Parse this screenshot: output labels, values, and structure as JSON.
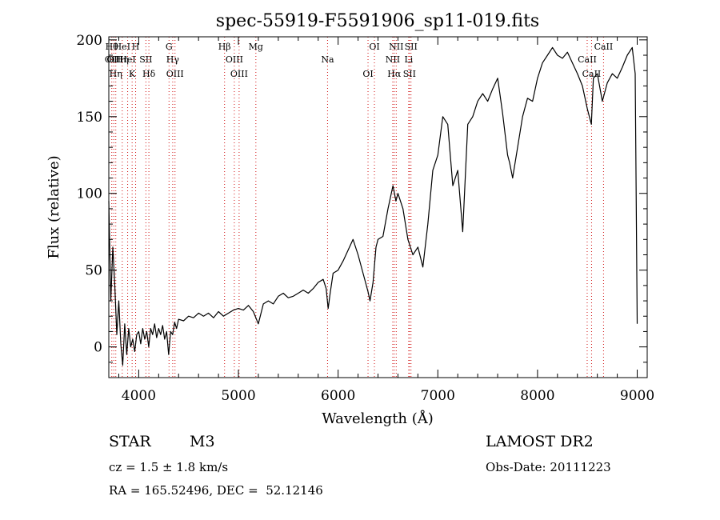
{
  "chart_data": {
    "type": "line",
    "title": "spec-55919-F5591906_sp11-019.fits",
    "xlabel": "Wavelength (Å)",
    "ylabel": "Flux (relative)",
    "xlim": [
      3700,
      9100
    ],
    "ylim": [
      -20,
      202
    ],
    "x_ticks": [
      4000,
      5000,
      6000,
      7000,
      8000,
      9000
    ],
    "y_ticks": [
      0,
      50,
      100,
      150,
      200
    ],
    "grid": false,
    "series": [
      {
        "color": "#000000",
        "points": [
          [
            3700,
            95
          ],
          [
            3720,
            30
          ],
          [
            3740,
            65
          ],
          [
            3760,
            40
          ],
          [
            3780,
            8
          ],
          [
            3800,
            30
          ],
          [
            3820,
            2
          ],
          [
            3840,
            -12
          ],
          [
            3860,
            15
          ],
          [
            3880,
            -5
          ],
          [
            3900,
            12
          ],
          [
            3920,
            0
          ],
          [
            3940,
            5
          ],
          [
            3960,
            -3
          ],
          [
            3980,
            8
          ],
          [
            4000,
            10
          ],
          [
            4020,
            2
          ],
          [
            4040,
            12
          ],
          [
            4060,
            5
          ],
          [
            4080,
            10
          ],
          [
            4100,
            0
          ],
          [
            4120,
            12
          ],
          [
            4140,
            8
          ],
          [
            4160,
            15
          ],
          [
            4180,
            6
          ],
          [
            4200,
            12
          ],
          [
            4220,
            8
          ],
          [
            4240,
            14
          ],
          [
            4260,
            5
          ],
          [
            4280,
            10
          ],
          [
            4300,
            -5
          ],
          [
            4320,
            10
          ],
          [
            4340,
            8
          ],
          [
            4360,
            16
          ],
          [
            4380,
            12
          ],
          [
            4400,
            18
          ],
          [
            4450,
            17
          ],
          [
            4500,
            20
          ],
          [
            4550,
            19
          ],
          [
            4600,
            22
          ],
          [
            4650,
            20
          ],
          [
            4700,
            22
          ],
          [
            4750,
            19
          ],
          [
            4800,
            23
          ],
          [
            4850,
            20
          ],
          [
            4900,
            22
          ],
          [
            4950,
            24
          ],
          [
            5000,
            25
          ],
          [
            5050,
            24
          ],
          [
            5100,
            27
          ],
          [
            5150,
            23
          ],
          [
            5200,
            15
          ],
          [
            5250,
            28
          ],
          [
            5300,
            30
          ],
          [
            5350,
            28
          ],
          [
            5400,
            33
          ],
          [
            5450,
            35
          ],
          [
            5500,
            32
          ],
          [
            5550,
            33
          ],
          [
            5600,
            35
          ],
          [
            5650,
            37
          ],
          [
            5700,
            35
          ],
          [
            5750,
            38
          ],
          [
            5800,
            42
          ],
          [
            5850,
            44
          ],
          [
            5880,
            38
          ],
          [
            5900,
            25
          ],
          [
            5920,
            35
          ],
          [
            5950,
            48
          ],
          [
            6000,
            50
          ],
          [
            6050,
            56
          ],
          [
            6100,
            63
          ],
          [
            6150,
            70
          ],
          [
            6200,
            60
          ],
          [
            6250,
            48
          ],
          [
            6300,
            36
          ],
          [
            6320,
            30
          ],
          [
            6350,
            42
          ],
          [
            6380,
            65
          ],
          [
            6400,
            70
          ],
          [
            6450,
            72
          ],
          [
            6500,
            90
          ],
          [
            6550,
            105
          ],
          [
            6580,
            95
          ],
          [
            6600,
            100
          ],
          [
            6650,
            90
          ],
          [
            6700,
            70
          ],
          [
            6750,
            60
          ],
          [
            6800,
            65
          ],
          [
            6850,
            52
          ],
          [
            6900,
            80
          ],
          [
            6950,
            115
          ],
          [
            7000,
            125
          ],
          [
            7050,
            150
          ],
          [
            7100,
            145
          ],
          [
            7150,
            105
          ],
          [
            7200,
            115
          ],
          [
            7250,
            75
          ],
          [
            7300,
            145
          ],
          [
            7350,
            150
          ],
          [
            7400,
            160
          ],
          [
            7450,
            165
          ],
          [
            7500,
            160
          ],
          [
            7550,
            168
          ],
          [
            7600,
            175
          ],
          [
            7650,
            152
          ],
          [
            7700,
            125
          ],
          [
            7720,
            120
          ],
          [
            7750,
            110
          ],
          [
            7800,
            130
          ],
          [
            7850,
            150
          ],
          [
            7900,
            162
          ],
          [
            7950,
            160
          ],
          [
            8000,
            175
          ],
          [
            8050,
            185
          ],
          [
            8100,
            190
          ],
          [
            8150,
            195
          ],
          [
            8200,
            190
          ],
          [
            8250,
            188
          ],
          [
            8300,
            192
          ],
          [
            8350,
            185
          ],
          [
            8400,
            178
          ],
          [
            8450,
            170
          ],
          [
            8500,
            155
          ],
          [
            8540,
            145
          ],
          [
            8560,
            175
          ],
          [
            8600,
            178
          ],
          [
            8650,
            160
          ],
          [
            8700,
            172
          ],
          [
            8750,
            178
          ],
          [
            8800,
            175
          ],
          [
            8850,
            182
          ],
          [
            8900,
            190
          ],
          [
            8950,
            195
          ],
          [
            8980,
            178
          ],
          [
            9000,
            15
          ]
        ]
      }
    ],
    "lines": [
      {
        "x": 3730,
        "labels": [
          "Hθ",
          "OII"
        ]
      },
      {
        "x": 3750,
        "labels": [
          "OII"
        ]
      },
      {
        "x": 3770,
        "labels": [
          "Hη"
        ]
      },
      {
        "x": 3835,
        "labels": [
          "HeI",
          "Hη"
        ]
      },
      {
        "x": 3889,
        "labels": [
          "HeI"
        ]
      },
      {
        "x": 3934,
        "labels": [
          "K"
        ]
      },
      {
        "x": 3969,
        "labels": [
          "H"
        ]
      },
      {
        "x": 4072,
        "labels": [
          "SII"
        ]
      },
      {
        "x": 4102,
        "labels": [
          "Hδ"
        ]
      },
      {
        "x": 4304,
        "labels": [
          "G"
        ]
      },
      {
        "x": 4341,
        "labels": [
          "Hγ"
        ]
      },
      {
        "x": 4364,
        "labels": [
          "OIII"
        ]
      },
      {
        "x": 4861,
        "labels": [
          "Hβ"
        ]
      },
      {
        "x": 4959,
        "labels": [
          "OIII"
        ]
      },
      {
        "x": 5007,
        "labels": [
          "OIII"
        ]
      },
      {
        "x": 5175,
        "labels": [
          "Mg"
        ]
      },
      {
        "x": 5894,
        "labels": [
          "Na"
        ]
      },
      {
        "x": 6300,
        "labels": [
          "OI"
        ]
      },
      {
        "x": 6364,
        "labels": [
          "OI"
        ]
      },
      {
        "x": 6548,
        "labels": [
          "NII"
        ]
      },
      {
        "x": 6563,
        "labels": [
          "Hα"
        ]
      },
      {
        "x": 6583,
        "labels": [
          "NII"
        ]
      },
      {
        "x": 6708,
        "labels": [
          "Li"
        ]
      },
      {
        "x": 6716,
        "labels": [
          "SII"
        ]
      },
      {
        "x": 6731,
        "labels": [
          "SII"
        ]
      },
      {
        "x": 8498,
        "labels": [
          "CaII"
        ]
      },
      {
        "x": 8542,
        "labels": [
          "CaII"
        ]
      },
      {
        "x": 8662,
        "labels": [
          "CaII"
        ]
      }
    ],
    "line_color": "#d01010"
  },
  "info": {
    "object_class": "STAR",
    "subclass": "M3",
    "survey": "LAMOST DR2",
    "redshift": "cz = 1.5 ± 1.8 km/s",
    "obs_date": "Obs-Date: 20111223",
    "coords": "RA = 165.52496, DEC =  52.12146"
  }
}
